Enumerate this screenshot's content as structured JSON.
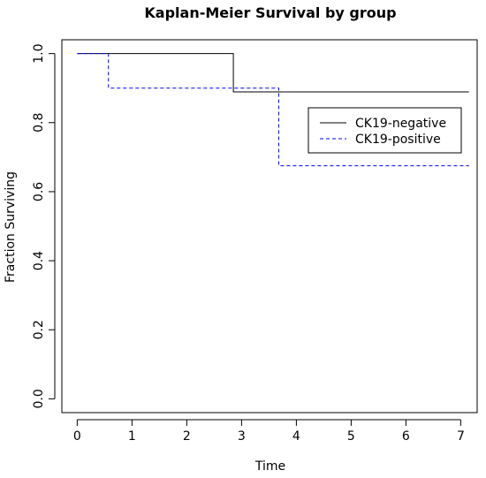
{
  "chart_data": {
    "type": "line",
    "title": "Kaplan-Meier Survival by group",
    "xlabel": "Time",
    "ylabel": "Fraction Surviving",
    "xlim": [
      -0.28,
      7.3
    ],
    "ylim": [
      -0.04,
      1.04
    ],
    "x_ticks": [
      0,
      1,
      2,
      3,
      4,
      5,
      6,
      7
    ],
    "y_ticks": [
      "0.0",
      "0.2",
      "0.4",
      "0.6",
      "0.8",
      "1.0"
    ],
    "y_tick_values": [
      0.0,
      0.2,
      0.4,
      0.6,
      0.8,
      1.0
    ],
    "grid": false,
    "legend_position": "top-right",
    "series": [
      {
        "name": "CK19-negative",
        "step": true,
        "color": "#000000",
        "dash": "solid",
        "x": [
          0,
          2.85,
          2.85,
          7.15
        ],
        "y": [
          1.0,
          1.0,
          0.889,
          0.889
        ]
      },
      {
        "name": "CK19-positive",
        "step": true,
        "color": "#0000ff",
        "dash": "dashed",
        "x": [
          0,
          0.57,
          0.57,
          3.68,
          3.68,
          7.15
        ],
        "y": [
          1.0,
          1.0,
          0.9,
          0.9,
          0.675,
          0.675
        ]
      }
    ]
  }
}
